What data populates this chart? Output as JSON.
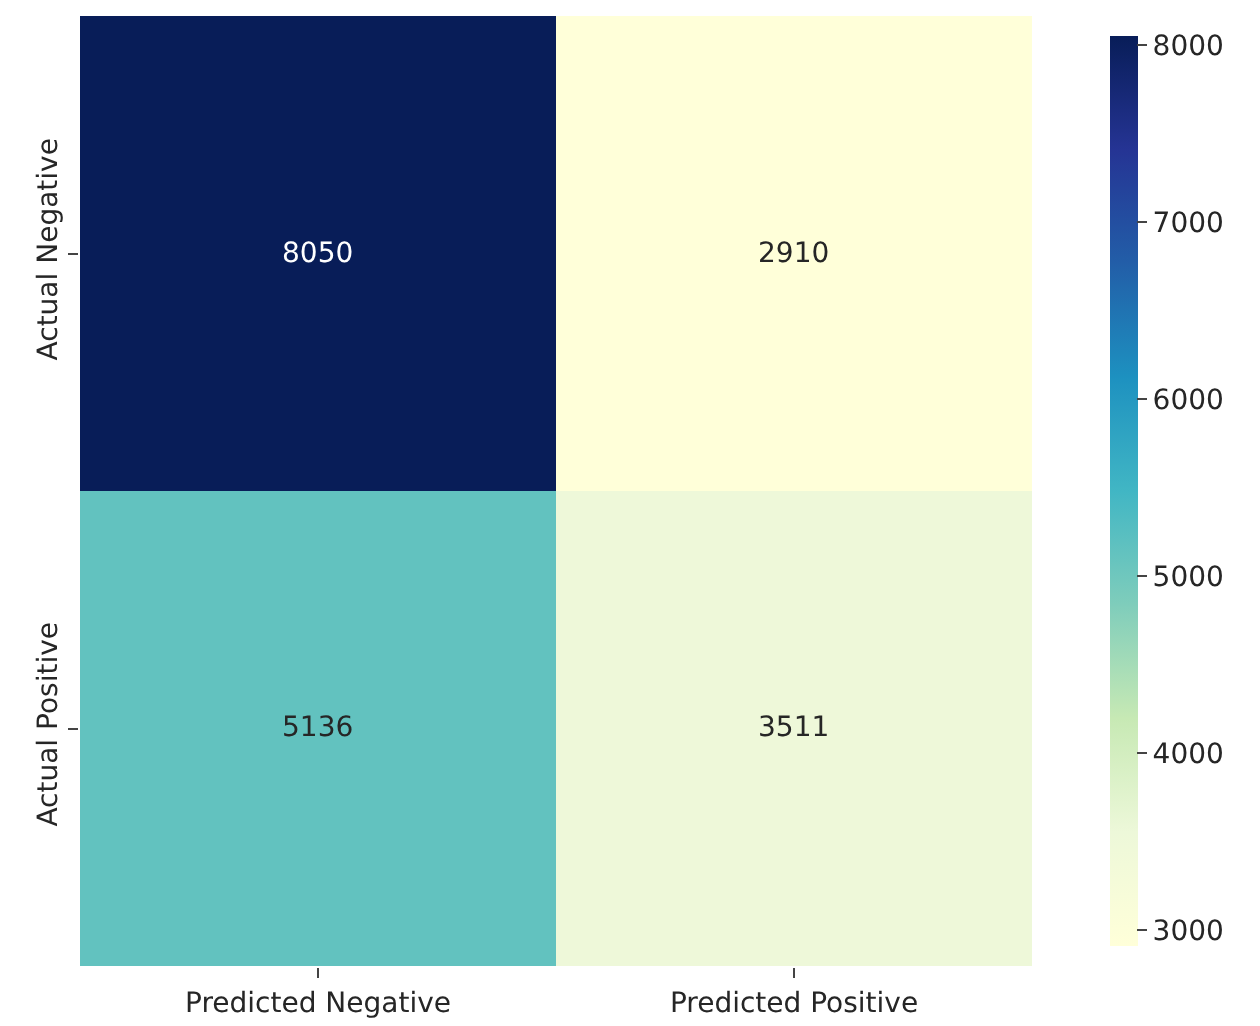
{
  "chart_data": {
    "type": "heatmap",
    "categories": [
      "Predicted Negative",
      "Predicted Positive"
    ],
    "y_categories": [
      "Actual Negative",
      "Actual Positive"
    ],
    "cells": [
      [
        8050,
        2910
      ],
      [
        5136,
        3511
      ]
    ],
    "data_labels": true,
    "clim": [
      2910,
      8050
    ],
    "cticks": [
      3000,
      4000,
      5000,
      6000,
      7000,
      8000
    ]
  }
}
